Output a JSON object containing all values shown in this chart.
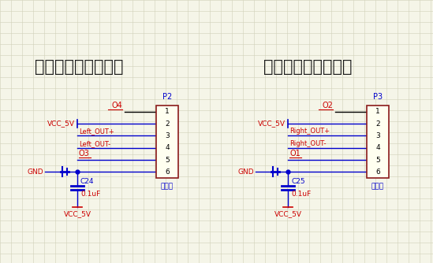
{
  "bg_color": "#f5f5e8",
  "grid_color": "#d0d0b8",
  "title_color": "#1a1a1a",
  "blue_color": "#0000cc",
  "red_color": "#cc0000",
  "connector_fill": "#fffff0",
  "connector_edge": "#8b1a1a",
  "left_title": "左轮电机编码器接口",
  "right_title": "右轮电机编码器接口",
  "left_conn_name": "P2",
  "right_conn_name": "P3",
  "encoder_label": "编码器",
  "left_pins": [
    "1",
    "2",
    "3",
    "4",
    "5",
    "6"
  ],
  "right_pins": [
    "1",
    "2",
    "3",
    "4",
    "5",
    "6"
  ],
  "left_o_top": "O4",
  "left_o_bot": "O3",
  "right_o_top": "O2",
  "right_o_bot": "O1",
  "left_cap": "C24",
  "right_cap": "C25",
  "cap_val": "0.1uF",
  "vcc_label": "VCC_5V",
  "gnd_label": "GND",
  "left_out_p": "Left_OUT+",
  "left_out_m": "Left_OUT-",
  "right_out_p": "Right_OUT+",
  "right_out_m": "Right_OUT-"
}
